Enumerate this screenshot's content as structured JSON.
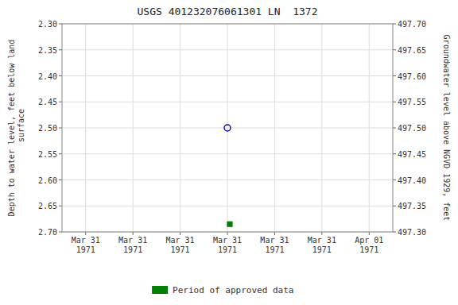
{
  "chart_data": {
    "type": "scatter",
    "title": "USGS 401232076061301 LN  1372",
    "y_label": "Depth to water level, feet below land\n surface",
    "y2_label": "Groundwater level above NGVD 1929, feet",
    "categories": [
      "Mar 31\n1971",
      "Mar 31\n1971",
      "Mar 31\n1971",
      "Mar 31\n1971",
      "Mar 31\n1971",
      "Mar 31\n1971",
      "Apr 01\n1971"
    ],
    "series": [
      {
        "color": "#0000bb",
        "marker": "open-circle",
        "values": [
          null,
          null,
          null,
          2.5,
          null,
          null,
          null
        ]
      },
      {
        "name": "Period of approved data",
        "color": "#008000",
        "marker": "square",
        "values": [
          null,
          null,
          null,
          2.685,
          null,
          null,
          null
        ]
      }
    ],
    "ylim": [
      2.7,
      2.3
    ],
    "yticks": [
      {
        "value": 2.3,
        "label": "2.30"
      },
      2.35,
      {
        "value": 2.4,
        "label": "2.40"
      },
      2.45,
      {
        "value": 2.5,
        "label": "2.50"
      },
      2.55,
      {
        "value": 2.6,
        "label": "2.60"
      },
      2.65,
      {
        "value": 2.7,
        "label": "2.70"
      }
    ],
    "y2lim": [
      497.3,
      497.7
    ],
    "y2ticks": [
      {
        "value": 497.7,
        "label": "497.70"
      },
      497.65,
      {
        "value": 497.6,
        "label": "497.60"
      },
      497.55,
      {
        "value": 497.5,
        "label": "497.50"
      },
      497.45,
      {
        "value": 497.4,
        "label": "497.40"
      },
      497.35,
      {
        "value": 497.3,
        "label": "497.30"
      }
    ],
    "grid": true,
    "legend": "bottom"
  }
}
